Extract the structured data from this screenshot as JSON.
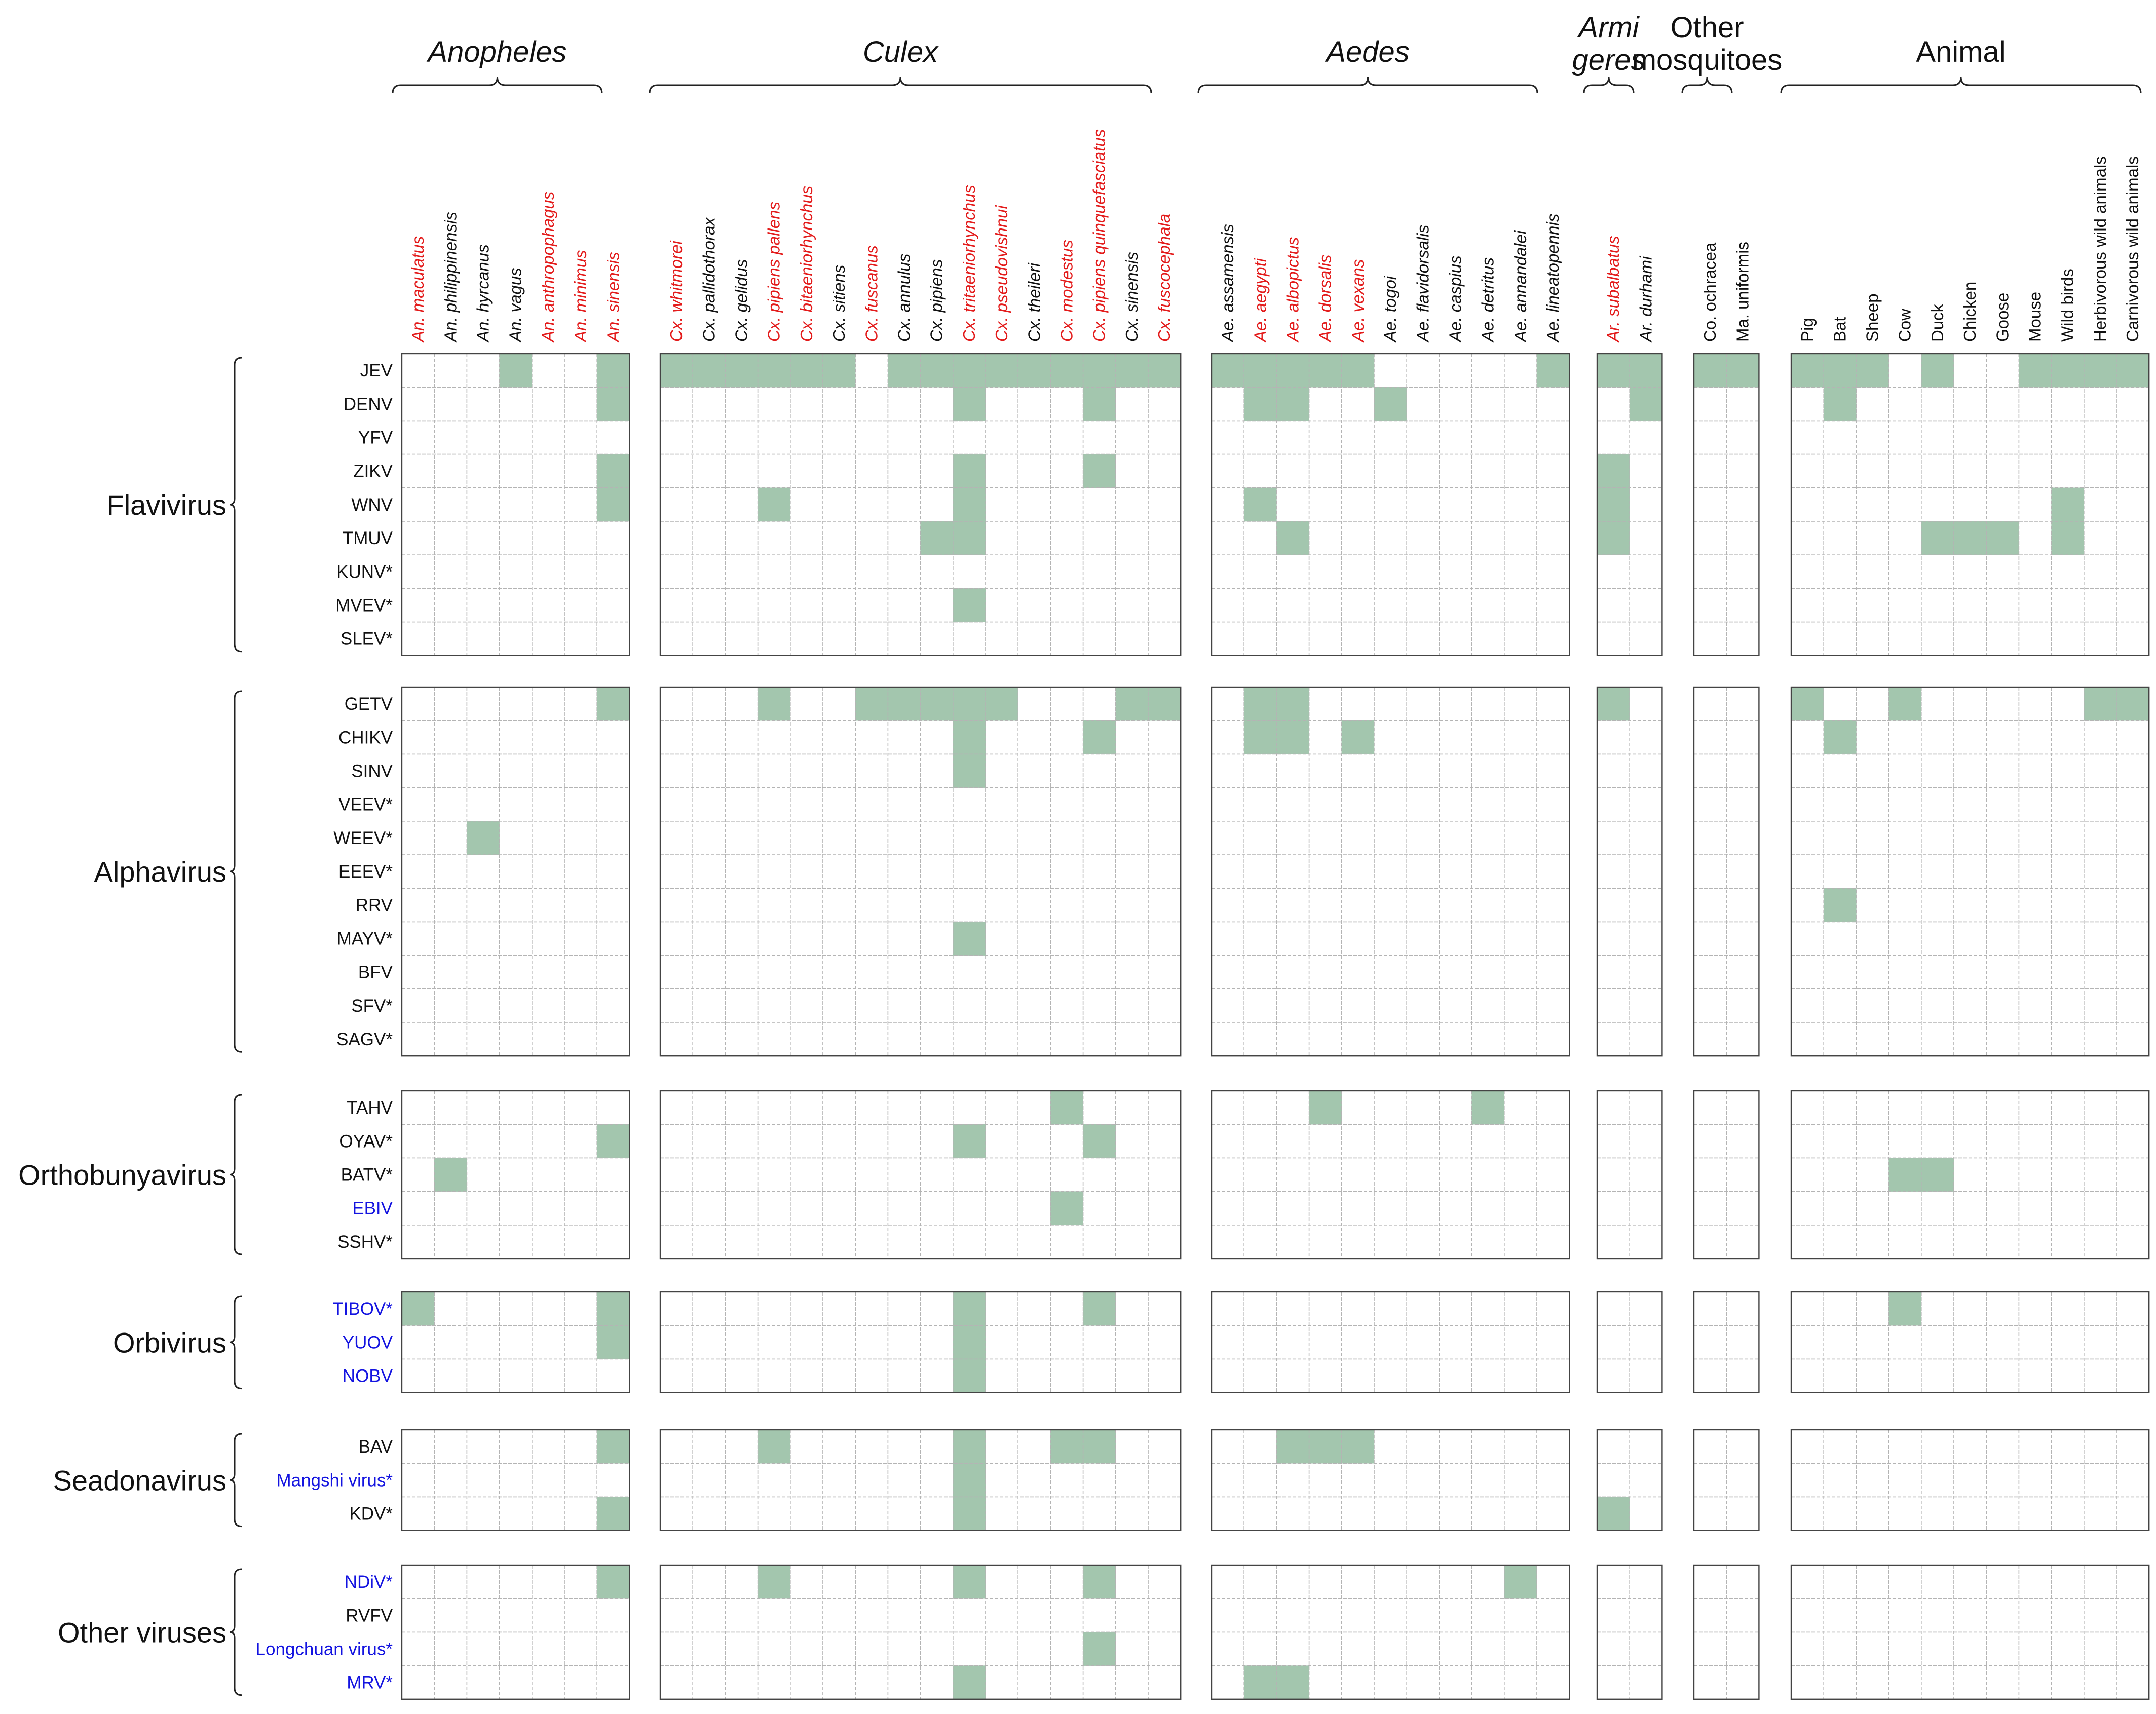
{
  "colors": {
    "cell_fill": "#a3c6ae",
    "red_species": "#e31b1b",
    "black": "#111111",
    "blue_virus": "#1414e0",
    "grid": "#b4b4b4",
    "border": "#444444"
  },
  "column_groups": [
    {
      "label": "Anopheles",
      "italic": true,
      "columns": [
        {
          "label": "An. maculatus",
          "color": "red"
        },
        {
          "label": "An. philippinensis",
          "color": "black"
        },
        {
          "label": "An. hyrcanus",
          "color": "black"
        },
        {
          "label": "An. vagus",
          "color": "black"
        },
        {
          "label": "An. anthropophagus",
          "color": "red"
        },
        {
          "label": "An. minimus",
          "color": "red"
        },
        {
          "label": "An. sinensis",
          "color": "red"
        }
      ]
    },
    {
      "label": "Culex",
      "italic": true,
      "columns": [
        {
          "label": "Cx. whitmorei",
          "color": "red"
        },
        {
          "label": "Cx. pallidothorax",
          "color": "black"
        },
        {
          "label": "Cx. gelidus",
          "color": "black"
        },
        {
          "label": "Cx. pipiens pallens",
          "color": "red"
        },
        {
          "label": "Cx. bitaeniorhynchus",
          "color": "red"
        },
        {
          "label": "Cx. sitiens",
          "color": "black"
        },
        {
          "label": "Cx. fuscanus",
          "color": "red"
        },
        {
          "label": "Cx. annulus",
          "color": "black"
        },
        {
          "label": "Cx. pipiens",
          "color": "black"
        },
        {
          "label": "Cx. tritaeniorhynchus",
          "color": "red"
        },
        {
          "label": "Cx. pseudovishnui",
          "color": "red"
        },
        {
          "label": "Cx. theileri",
          "color": "black"
        },
        {
          "label": "Cx. modestus",
          "color": "red"
        },
        {
          "label": "Cx. pipiens quinquefasciatus",
          "color": "red"
        },
        {
          "label": "Cx. sinensis",
          "color": "black"
        },
        {
          "label": "Cx. fuscocephala",
          "color": "red"
        }
      ]
    },
    {
      "label": "Aedes",
      "italic": true,
      "columns": [
        {
          "label": "Ae. assamensis",
          "color": "black"
        },
        {
          "label": "Ae. aegypti",
          "color": "red"
        },
        {
          "label": "Ae. albopictus",
          "color": "red"
        },
        {
          "label": "Ae. dorsalis",
          "color": "red"
        },
        {
          "label": "Ae. vexans",
          "color": "red"
        },
        {
          "label": "Ae. togoi",
          "color": "black"
        },
        {
          "label": "Ae. flavidorsalis",
          "color": "black"
        },
        {
          "label": "Ae. caspius",
          "color": "black"
        },
        {
          "label": "Ae. detritus",
          "color": "black"
        },
        {
          "label": "Ae. annandalei",
          "color": "black"
        },
        {
          "label": "Ae. lineatopennis",
          "color": "black"
        }
      ]
    },
    {
      "label_lines": [
        "Armi",
        "geres"
      ],
      "italic": true,
      "columns": [
        {
          "label": "Ar. subalbatus",
          "color": "red"
        },
        {
          "label": "Ar. durhami",
          "color": "black"
        }
      ]
    },
    {
      "label_lines": [
        "Other",
        "mosquitoes"
      ],
      "italic": false,
      "columns": [
        {
          "label": "Co. ochracea",
          "color": "black"
        },
        {
          "label": "Ma. uniformis",
          "color": "black"
        }
      ]
    },
    {
      "label": "Animal",
      "italic": false,
      "animal": true,
      "columns": [
        {
          "label": "Pig",
          "color": "black"
        },
        {
          "label": "Bat",
          "color": "black"
        },
        {
          "label": "Sheep",
          "color": "black"
        },
        {
          "label": "Cow",
          "color": "black"
        },
        {
          "label": "Duck",
          "color": "black"
        },
        {
          "label": "Chicken",
          "color": "black"
        },
        {
          "label": "Goose",
          "color": "black"
        },
        {
          "label": "Mouse",
          "color": "black"
        },
        {
          "label": "Wild birds",
          "color": "black"
        },
        {
          "label": "Herbivorous wild animals",
          "color": "black"
        },
        {
          "label": "Carnivorous wild animals",
          "color": "black"
        }
      ]
    }
  ],
  "row_groups": [
    {
      "label": "Flavivirus",
      "rows": [
        {
          "label": "JEV",
          "blue": false
        },
        {
          "label": "DENV",
          "blue": false
        },
        {
          "label": "YFV",
          "blue": false
        },
        {
          "label": "ZIKV",
          "blue": false
        },
        {
          "label": "WNV",
          "blue": false
        },
        {
          "label": "TMUV",
          "blue": false
        },
        {
          "label": "KUNV*",
          "blue": false
        },
        {
          "label": "MVEV*",
          "blue": false
        },
        {
          "label": "SLEV*",
          "blue": false
        }
      ]
    },
    {
      "label": "Alphavirus",
      "rows": [
        {
          "label": "GETV",
          "blue": false
        },
        {
          "label": "CHIKV",
          "blue": false
        },
        {
          "label": "SINV",
          "blue": false
        },
        {
          "label": "VEEV*",
          "blue": false
        },
        {
          "label": "WEEV*",
          "blue": false
        },
        {
          "label": "EEEV*",
          "blue": false
        },
        {
          "label": "RRV",
          "blue": false
        },
        {
          "label": "MAYV*",
          "blue": false
        },
        {
          "label": "BFV",
          "blue": false
        },
        {
          "label": "SFV*",
          "blue": false
        },
        {
          "label": "SAGV*",
          "blue": false
        }
      ]
    },
    {
      "label": "Orthobunyavirus",
      "rows": [
        {
          "label": "TAHV",
          "blue": false
        },
        {
          "label": "OYAV*",
          "blue": false
        },
        {
          "label": "BATV*",
          "blue": false
        },
        {
          "label": "EBIV",
          "blue": true
        },
        {
          "label": "SSHV*",
          "blue": false
        }
      ]
    },
    {
      "label": "Orbivirus",
      "rows": [
        {
          "label": "TIBOV*",
          "blue": true
        },
        {
          "label": "YUOV",
          "blue": true
        },
        {
          "label": "NOBV",
          "blue": true
        }
      ]
    },
    {
      "label": "Seadonavirus",
      "rows": [
        {
          "label": "BAV",
          "blue": false
        },
        {
          "label": "Mangshi virus*",
          "blue": true
        },
        {
          "label": "KDV*",
          "blue": false
        }
      ]
    },
    {
      "label": "Other viruses",
      "rows": [
        {
          "label": "NDiV*",
          "blue": true
        },
        {
          "label": "RVFV",
          "blue": false
        },
        {
          "label": "Longchuan virus*",
          "blue": true
        },
        {
          "label": "MRV*",
          "blue": true
        }
      ]
    }
  ],
  "filled_cells": {
    "JEV": [
      "An. vagus",
      "An. sinensis",
      "Cx. whitmorei",
      "Cx. pallidothorax",
      "Cx. gelidus",
      "Cx. pipiens pallens",
      "Cx. bitaeniorhynchus",
      "Cx. sitiens",
      "Cx. annulus",
      "Cx. pipiens",
      "Cx. tritaeniorhynchus",
      "Cx. pseudovishnui",
      "Cx. theileri",
      "Cx. modestus",
      "Cx. pipiens quinquefasciatus",
      "Cx. sinensis",
      "Cx. fuscocephala",
      "Ae. assamensis",
      "Ae. aegypti",
      "Ae. albopictus",
      "Ae. dorsalis",
      "Ae. vexans",
      "Ae. lineatopennis",
      "Ar. subalbatus",
      "Ar. durhami",
      "Co. ochracea",
      "Ma. uniformis",
      "Pig",
      "Bat",
      "Sheep",
      "Duck",
      "Mouse",
      "Wild birds",
      "Herbivorous wild animals",
      "Carnivorous wild animals"
    ],
    "DENV": [
      "An. sinensis",
      "Cx. tritaeniorhynchus",
      "Cx. pipiens quinquefasciatus",
      "Ae. aegypti",
      "Ae. albopictus",
      "Ae. togoi",
      "Ar. durhami",
      "Bat"
    ],
    "ZIKV": [
      "An. sinensis",
      "Cx. tritaeniorhynchus",
      "Cx. pipiens quinquefasciatus",
      "Ar. subalbatus"
    ],
    "WNV": [
      "An. sinensis",
      "Cx. pipiens pallens",
      "Cx. tritaeniorhynchus",
      "Ae. aegypti",
      "Ar. subalbatus",
      "Wild birds"
    ],
    "TMUV": [
      "Cx. pipiens",
      "Cx. tritaeniorhynchus",
      "Ae. albopictus",
      "Ar. subalbatus",
      "Duck",
      "Chicken",
      "Goose",
      "Wild birds"
    ],
    "MVEV*": [
      "Cx. tritaeniorhynchus"
    ],
    "GETV": [
      "An. sinensis",
      "Cx. pipiens pallens",
      "Cx. fuscanus",
      "Cx. annulus",
      "Cx. pipiens",
      "Cx. tritaeniorhynchus",
      "Cx. pseudovishnui",
      "Cx. sinensis",
      "Cx. fuscocephala",
      "Ae. aegypti",
      "Ae. albopictus",
      "Ar. subalbatus",
      "Pig",
      "Cow",
      "Herbivorous wild animals",
      "Carnivorous wild animals"
    ],
    "CHIKV": [
      "Cx. tritaeniorhynchus",
      "Cx. pipiens quinquefasciatus",
      "Ae. aegypti",
      "Ae. albopictus",
      "Ae. vexans",
      "Bat"
    ],
    "SINV": [
      "Cx. tritaeniorhynchus"
    ],
    "WEEV*": [
      "An. hyrcanus"
    ],
    "RRV": [
      "Bat"
    ],
    "MAYV*": [
      "Cx. tritaeniorhynchus"
    ],
    "TAHV": [
      "Cx. modestus",
      "Ae. dorsalis",
      "Ae. detritus"
    ],
    "OYAV*": [
      "An. sinensis",
      "Cx. tritaeniorhynchus",
      "Cx. pipiens quinquefasciatus"
    ],
    "BATV*": [
      "An. philippinensis",
      "Cow",
      "Duck"
    ],
    "EBIV": [
      "Cx. modestus"
    ],
    "TIBOV*": [
      "An. maculatus",
      "An. sinensis",
      "Cx. tritaeniorhynchus",
      "Cx. pipiens quinquefasciatus",
      "Cow"
    ],
    "YUOV": [
      "An. sinensis",
      "Cx. tritaeniorhynchus"
    ],
    "NOBV": [
      "Cx. tritaeniorhynchus"
    ],
    "BAV": [
      "An. sinensis",
      "Cx. pipiens pallens",
      "Cx. tritaeniorhynchus",
      "Cx. modestus",
      "Cx. pipiens quinquefasciatus",
      "Ae. albopictus",
      "Ae. dorsalis",
      "Ae. vexans"
    ],
    "Mangshi virus*": [
      "Cx. tritaeniorhynchus"
    ],
    "KDV*": [
      "An. sinensis",
      "Cx. tritaeniorhynchus",
      "Ar. subalbatus"
    ],
    "NDiV*": [
      "An. sinensis",
      "Cx. pipiens pallens",
      "Cx. tritaeniorhynchus",
      "Cx. pipiens quinquefasciatus",
      "Ae. annandalei"
    ],
    "Longchuan virus*": [
      "Cx. pipiens quinquefasciatus"
    ],
    "MRV*": [
      "Cx. tritaeniorhynchus",
      "Ae. aegypti",
      "Ae. albopictus"
    ]
  }
}
